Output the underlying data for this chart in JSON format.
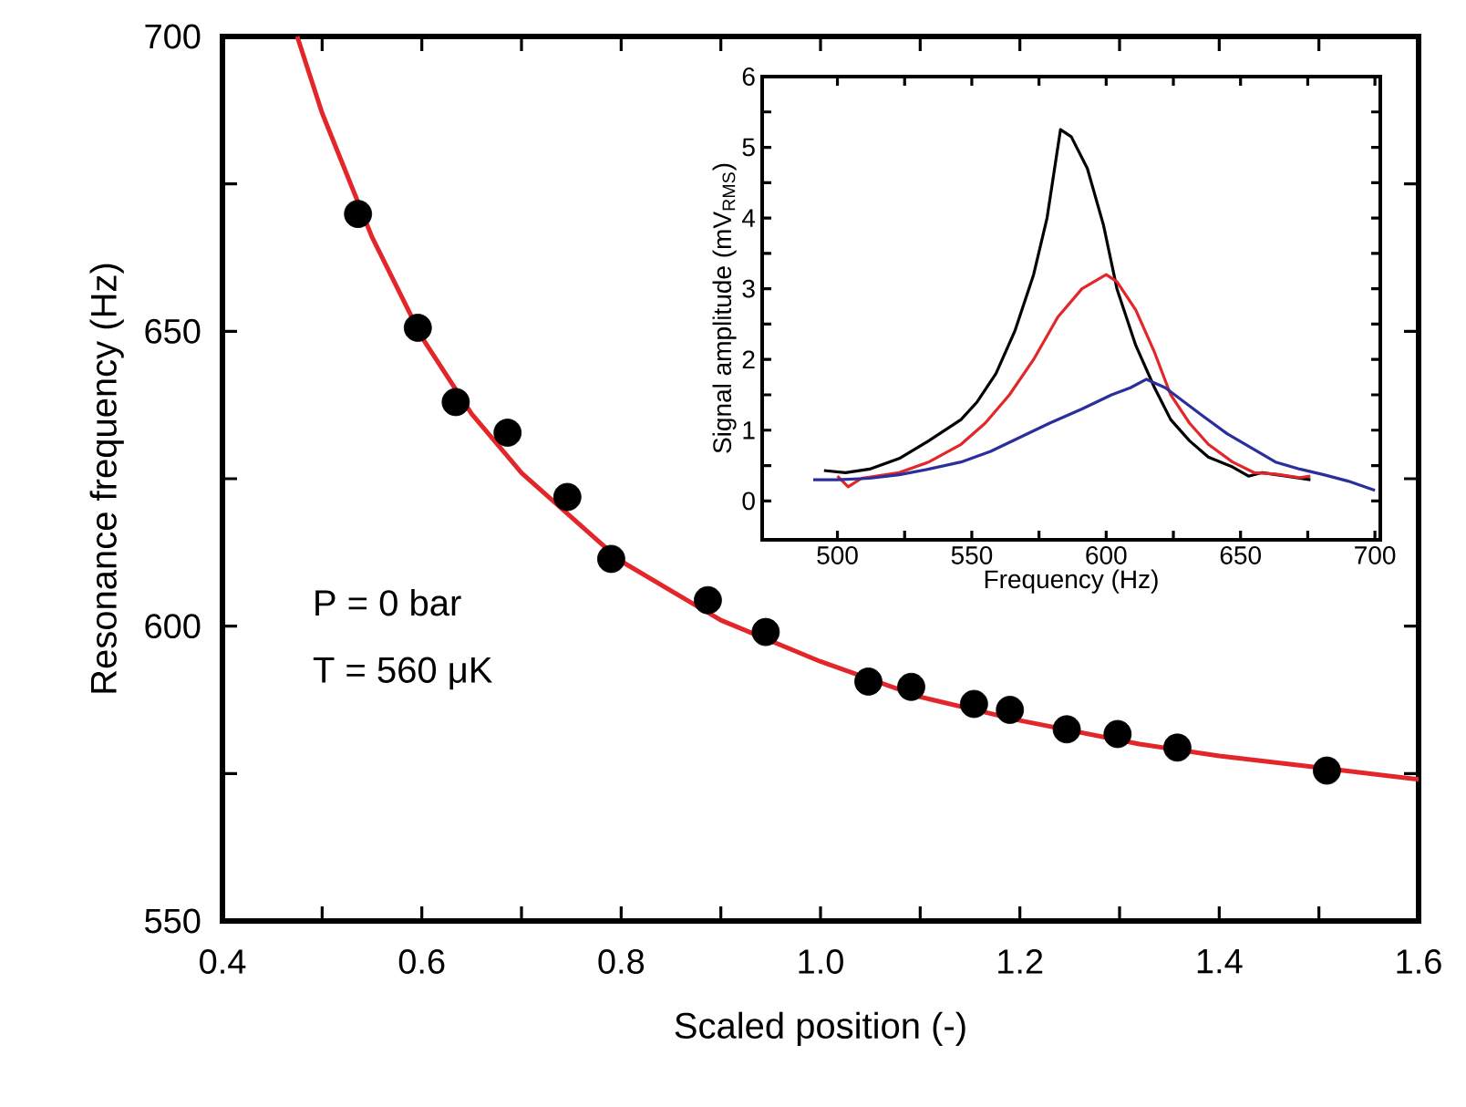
{
  "chart_data": [
    {
      "type": "scatter",
      "xlabel": "Scaled position (-)",
      "ylabel": "Resonance frequency (Hz)",
      "xlim": [
        0.4,
        1.6
      ],
      "ylim": [
        550,
        700
      ],
      "xticks": [
        0.4,
        {
          "value": 0.5,
          "label": null
        },
        0.6,
        {
          "value": 0.7,
          "label": null
        },
        0.8,
        {
          "value": 0.9,
          "label": null
        },
        {
          "value": 1,
          "label": "1.0"
        },
        {
          "value": 1.1,
          "label": null
        },
        1.2,
        {
          "value": 1.3,
          "label": null
        },
        1.4,
        {
          "value": 1.5,
          "label": null
        },
        1.6
      ],
      "yticks": [
        550,
        {
          "value": 575,
          "label": null
        },
        600,
        {
          "value": 625,
          "label": null
        },
        650,
        {
          "value": 675,
          "label": null
        },
        700
      ],
      "annotations": [
        "P = 0 bar",
        "T = 560 μK"
      ],
      "series": [
        {
          "type": "line",
          "color": "#e3262a",
          "x": [
            0.475,
            0.5,
            0.55,
            0.6,
            0.65,
            0.7,
            0.8,
            0.9,
            1.0,
            1.1,
            1.2,
            1.32,
            1.4,
            1.5,
            1.6
          ],
          "values": [
            700,
            687,
            666,
            649,
            636,
            626,
            611,
            601,
            594,
            588,
            584,
            580,
            578,
            576,
            574
          ]
        },
        {
          "type": "scatter",
          "marker": "circle",
          "color": "#000000",
          "x": [
            0.536,
            0.596,
            0.634,
            0.686,
            0.746,
            0.79,
            0.887,
            0.945,
            1.048,
            1.091,
            1.154,
            1.19,
            1.247,
            1.298,
            1.358,
            1.508
          ],
          "values": [
            669.9,
            650.6,
            638,
            632.8,
            621.9,
            611.4,
            604.4,
            599,
            590.6,
            589.7,
            586.8,
            585.8,
            582.5,
            581.7,
            579.4,
            575.5
          ]
        }
      ]
    },
    {
      "type": "line",
      "xlabel": "Frequency (Hz)",
      "ylabel": "Signal amplitude (mV$_{RMS}$)",
      "xlim": [
        472,
        702
      ],
      "ylim": [
        -0.55,
        6
      ],
      "xticks": [
        500,
        {
          "value": 525,
          "label": null
        },
        550,
        {
          "value": 575,
          "label": null
        },
        600,
        {
          "value": 625,
          "label": null
        },
        650,
        {
          "value": 675,
          "label": null
        },
        700
      ],
      "yticks": [
        0,
        {
          "value": 0.5,
          "label": null
        },
        1,
        {
          "value": 1.5,
          "label": null
        },
        2,
        {
          "value": 2.5,
          "label": null
        },
        3,
        {
          "value": 3.5,
          "label": null
        },
        4,
        {
          "value": 4.5,
          "label": null
        },
        5,
        {
          "value": 5.5,
          "label": null
        },
        6
      ],
      "series": [
        {
          "color": "#000000",
          "x": [
            495,
            503,
            512,
            523,
            534,
            546,
            552,
            559,
            566,
            573,
            578,
            583,
            587,
            593,
            599,
            604,
            611,
            618,
            624,
            631,
            638,
            647,
            653,
            658,
            667,
            676
          ],
          "values": [
            0.43,
            0.4,
            0.45,
            0.6,
            0.85,
            1.15,
            1.4,
            1.8,
            2.4,
            3.2,
            4.0,
            5.25,
            5.15,
            4.7,
            3.9,
            3.0,
            2.2,
            1.6,
            1.15,
            0.85,
            0.62,
            0.48,
            0.35,
            0.4,
            0.35,
            0.3
          ]
        },
        {
          "color": "#e3262a",
          "x": [
            500,
            504,
            509,
            523,
            534,
            546,
            555,
            564,
            573,
            582,
            591,
            600,
            604,
            611,
            618,
            624,
            631,
            638,
            647,
            655,
            663,
            672,
            676
          ],
          "values": [
            0.35,
            0.2,
            0.32,
            0.4,
            0.55,
            0.8,
            1.1,
            1.5,
            2.0,
            2.6,
            3.0,
            3.2,
            3.1,
            2.7,
            2.1,
            1.5,
            1.1,
            0.8,
            0.55,
            0.4,
            0.38,
            0.33,
            0.35
          ]
        },
        {
          "color": "#2b2f9c",
          "x": [
            491,
            500,
            512,
            523,
            534,
            546,
            557,
            568,
            579,
            591,
            602,
            609,
            615,
            622,
            629,
            636,
            645,
            654,
            663,
            672,
            681,
            690,
            700
          ],
          "values": [
            0.3,
            0.3,
            0.32,
            0.37,
            0.45,
            0.55,
            0.7,
            0.9,
            1.1,
            1.3,
            1.5,
            1.6,
            1.72,
            1.6,
            1.4,
            1.2,
            0.95,
            0.75,
            0.55,
            0.45,
            0.37,
            0.28,
            0.15
          ]
        }
      ]
    }
  ]
}
